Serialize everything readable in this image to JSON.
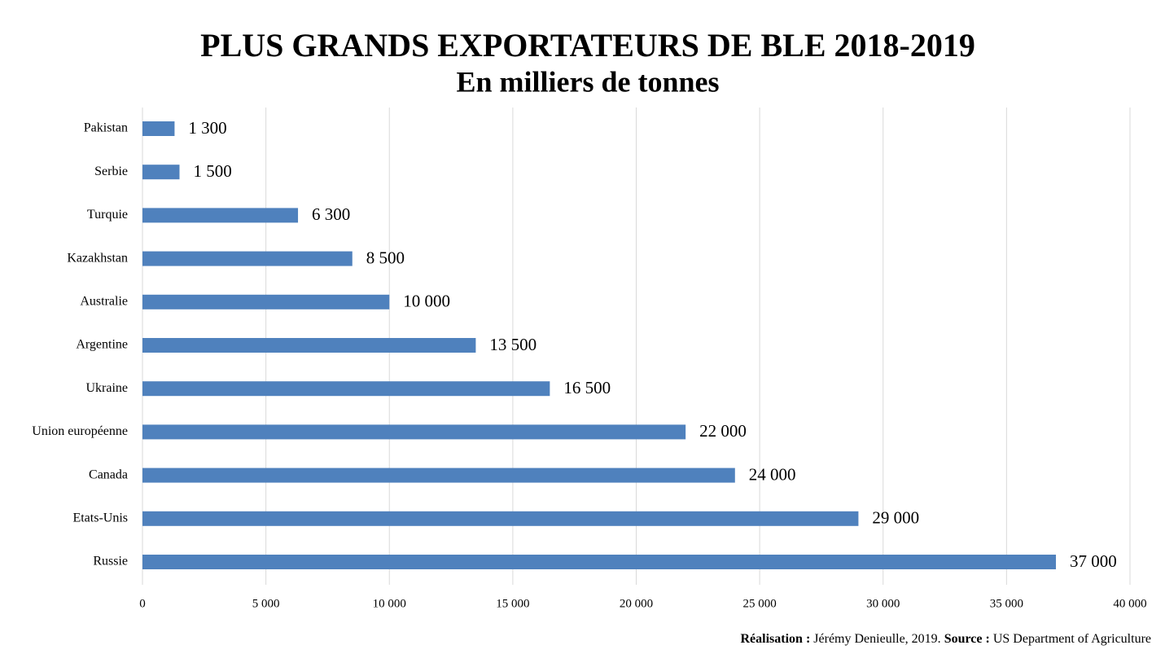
{
  "chart_data": {
    "type": "barh",
    "title": "PLUS GRANDS EXPORTATEURS DE BLE 2018-2019",
    "subtitle": "En milliers de tonnes",
    "categories": [
      "Pakistan",
      "Serbie",
      "Turquie",
      "Kazakhstan",
      "Australie",
      "Argentine",
      "Ukraine",
      "Union européenne",
      "Canada",
      "Etats-Unis",
      "Russie"
    ],
    "values": [
      1300,
      1500,
      6300,
      8500,
      10000,
      13500,
      16500,
      22000,
      24000,
      29000,
      37000
    ],
    "value_labels": [
      "1 300",
      "1 500",
      "6 300",
      "8 500",
      "10 000",
      "13 500",
      "16 500",
      "22 000",
      "24 000",
      "29 000",
      "37 000"
    ],
    "color": "#4f81bd",
    "xlim": [
      0,
      40000
    ],
    "xticks": [
      0,
      {
        "value": 5000,
        "label": "5 000"
      },
      {
        "value": 10000,
        "label": "10 000"
      },
      {
        "value": 15000,
        "label": "15 000"
      },
      {
        "value": 20000,
        "label": "20 000"
      },
      {
        "value": 25000,
        "label": "25 000"
      },
      {
        "value": 30000,
        "label": "30 000"
      },
      {
        "value": 35000,
        "label": "35 000"
      },
      {
        "value": 40000,
        "label": "40 000"
      }
    ],
    "grid": true,
    "credit_label": "Réalisation :",
    "credit": "Jérémy Denieulle, 2019.",
    "source_label": "Source :",
    "source": "US Department of Agriculture"
  }
}
